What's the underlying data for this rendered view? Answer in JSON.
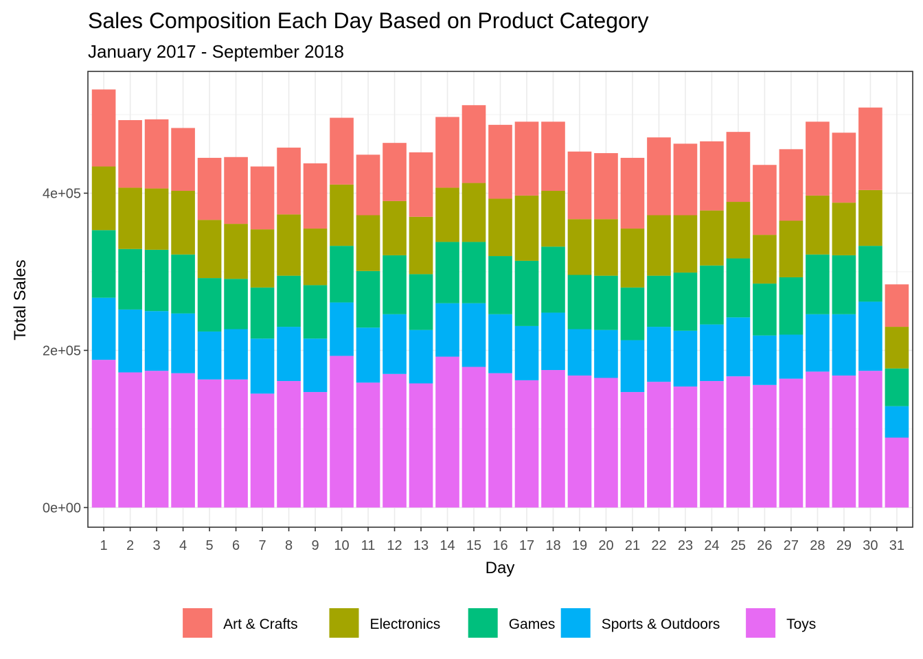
{
  "chart_data": {
    "type": "bar",
    "stacked": true,
    "title": "Sales Composition Each Day Based on Product Category",
    "subtitle": "January 2017 - September 2018",
    "xlabel": "Day",
    "ylabel": "Total Sales",
    "categories": [
      "1",
      "2",
      "3",
      "4",
      "5",
      "6",
      "7",
      "8",
      "9",
      "10",
      "11",
      "12",
      "13",
      "14",
      "15",
      "16",
      "17",
      "18",
      "19",
      "20",
      "21",
      "22",
      "23",
      "24",
      "25",
      "26",
      "27",
      "28",
      "29",
      "30",
      "31"
    ],
    "ylim": [
      -25000,
      555000
    ],
    "yticks": [
      0,
      200000,
      400000
    ],
    "ytick_labels": [
      "0e+00",
      "2e+05",
      "4e+05"
    ],
    "grid": true,
    "legend_position": "bottom",
    "series": [
      {
        "name": "Toys",
        "color": "#E76BF3",
        "values": [
          188000,
          172000,
          174000,
          171000,
          163000,
          163000,
          145000,
          161000,
          147000,
          193000,
          159000,
          170000,
          158000,
          192000,
          179000,
          171000,
          162000,
          175000,
          168000,
          165000,
          147000,
          160000,
          154000,
          161000,
          167000,
          156000,
          164000,
          173000,
          168000,
          174000,
          89000
        ]
      },
      {
        "name": "Sports & Outdoors",
        "color": "#00B0F6",
        "values": [
          79000,
          80000,
          76000,
          76000,
          61000,
          64000,
          70000,
          69000,
          68000,
          68000,
          70000,
          76000,
          68000,
          68000,
          81000,
          75000,
          69000,
          73000,
          59000,
          61000,
          66000,
          70000,
          71000,
          72000,
          75000,
          63000,
          56000,
          73000,
          78000,
          88000,
          40000
        ]
      },
      {
        "name": "Games",
        "color": "#00BF7D",
        "values": [
          86000,
          77000,
          78000,
          75000,
          68000,
          64000,
          65000,
          65000,
          68000,
          72000,
          72000,
          75000,
          71000,
          78000,
          78000,
          74000,
          83000,
          84000,
          69000,
          69000,
          67000,
          65000,
          74000,
          75000,
          75000,
          66000,
          73000,
          76000,
          75000,
          71000,
          48000
        ]
      },
      {
        "name": "Electronics",
        "color": "#A3A500",
        "values": [
          81000,
          78000,
          78000,
          81000,
          74000,
          70000,
          74000,
          78000,
          72000,
          78000,
          71000,
          69000,
          73000,
          69000,
          75000,
          73000,
          83000,
          71000,
          71000,
          72000,
          75000,
          77000,
          73000,
          70000,
          72000,
          62000,
          72000,
          75000,
          67000,
          71000,
          53000
        ]
      },
      {
        "name": "Art & Crafts",
        "color": "#F8766D",
        "values": [
          98000,
          86000,
          88000,
          80000,
          79000,
          85000,
          80000,
          85000,
          83000,
          85000,
          77000,
          74000,
          82000,
          90000,
          99000,
          94000,
          94000,
          88000,
          86000,
          84000,
          90000,
          99000,
          91000,
          88000,
          89000,
          89000,
          91000,
          94000,
          89000,
          105000,
          54000
        ]
      }
    ]
  }
}
